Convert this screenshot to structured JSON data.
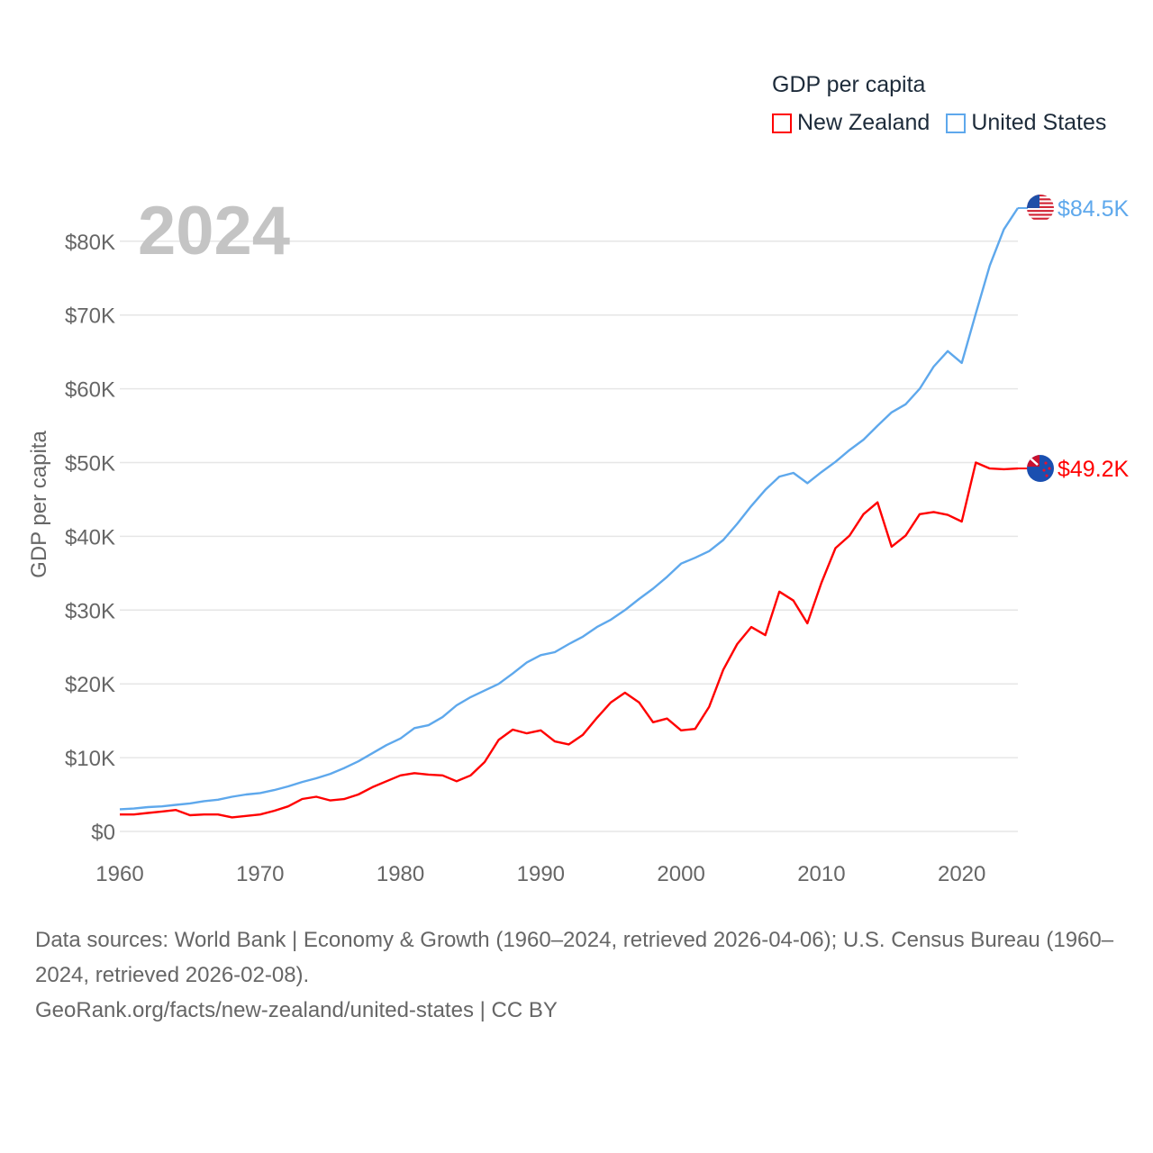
{
  "legend": {
    "title": "GDP per capita",
    "items": [
      {
        "label": "New Zealand",
        "color": "#ff0000"
      },
      {
        "label": "United States",
        "color": "#5ea8ec"
      }
    ]
  },
  "footer": {
    "sources": "Data sources: World Bank | Economy & Growth (1960–2024, retrieved 2026-04-06); U.S. Census Bureau (1960–2024, retrieved 2026-02-08).",
    "link": "GeoRank.org/facts/new-zealand/united-states | CC BY"
  },
  "chart_data": {
    "type": "line",
    "title": "GDP per capita",
    "year_label": "2024",
    "xlabel": "",
    "ylabel": "GDP per capita",
    "xlim": [
      1960,
      2024
    ],
    "ylim": [
      0,
      85
    ],
    "x_ticks": [
      "1960",
      "1970",
      "1980",
      "1990",
      "2000",
      "2010",
      "2020"
    ],
    "y_ticks": [
      {
        "value": 0,
        "label": "$0"
      },
      {
        "value": 10,
        "label": "$10K"
      },
      {
        "value": 20,
        "label": "$20K"
      },
      {
        "value": 30,
        "label": "$30K"
      },
      {
        "value": 40,
        "label": "$40K"
      },
      {
        "value": 50,
        "label": "$50K"
      },
      {
        "value": 60,
        "label": "$60K"
      },
      {
        "value": 70,
        "label": "$70K"
      },
      {
        "value": 80,
        "label": "$80K"
      }
    ],
    "units": "thousand USD",
    "grid": true,
    "legend_position": "top-right",
    "x_start": 1960,
    "series": [
      {
        "name": "New Zealand",
        "color": "#ff0000",
        "end_label": "$49.2K",
        "flag": "nz",
        "values": [
          2.3,
          2.3,
          2.5,
          2.7,
          2.9,
          2.2,
          2.3,
          2.3,
          1.9,
          2.1,
          2.3,
          2.8,
          3.4,
          4.4,
          4.7,
          4.2,
          4.4,
          5.0,
          6.0,
          6.8,
          7.6,
          7.9,
          7.7,
          7.6,
          6.8,
          7.6,
          9.4,
          12.4,
          13.8,
          13.3,
          13.7,
          12.2,
          11.8,
          13.1,
          15.4,
          17.5,
          18.8,
          17.5,
          14.8,
          15.3,
          13.7,
          13.9,
          16.9,
          21.9,
          25.4,
          27.7,
          26.6,
          32.5,
          31.3,
          28.2,
          33.7,
          38.4,
          40.1,
          43.0,
          44.6,
          38.6,
          40.1,
          43.0,
          43.3,
          42.9,
          42.0,
          50.0,
          49.2,
          49.1,
          49.2
        ]
      },
      {
        "name": "United States",
        "color": "#5ea8ec",
        "end_label": "$84.5K",
        "flag": "us",
        "values": [
          3.0,
          3.1,
          3.3,
          3.4,
          3.6,
          3.8,
          4.1,
          4.3,
          4.7,
          5.0,
          5.2,
          5.6,
          6.1,
          6.7,
          7.2,
          7.8,
          8.6,
          9.5,
          10.6,
          11.7,
          12.6,
          14.0,
          14.4,
          15.5,
          17.1,
          18.2,
          19.1,
          20.0,
          21.4,
          22.9,
          23.9,
          24.3,
          25.4,
          26.4,
          27.7,
          28.7,
          30.0,
          31.5,
          32.9,
          34.5,
          36.3,
          37.1,
          38.0,
          39.5,
          41.7,
          44.1,
          46.3,
          48.1,
          48.6,
          47.2,
          48.7,
          50.1,
          51.7,
          53.1,
          55.0,
          56.8,
          57.9,
          60.0,
          63.0,
          65.1,
          63.5,
          70.2,
          76.7,
          81.6,
          84.5
        ]
      }
    ]
  }
}
